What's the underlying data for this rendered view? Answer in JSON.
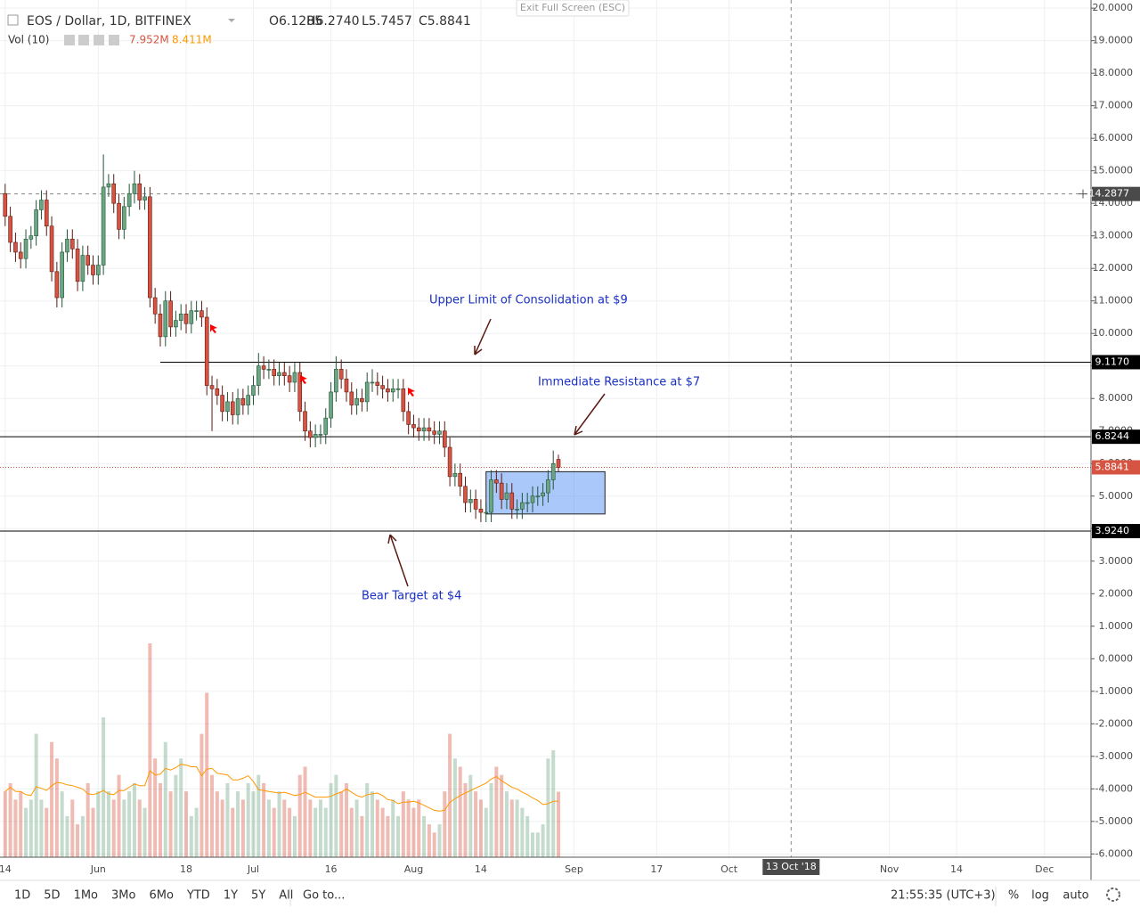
{
  "chart_data": {
    "type": "candlestick",
    "title": "EOS / Dollar, 1D, BITFINEX",
    "ohlc_labels": [
      "O6.1285",
      "H6.2740",
      "L5.7457",
      "C5.8841"
    ],
    "volume_title": "Vol (10)",
    "volume_labels": [
      "7.952M",
      "8.411M"
    ],
    "exit_button": "Exit Full Screen (ESC)",
    "x": [
      "2018-05-14",
      "2018-05-15",
      "2018-05-16",
      "2018-05-17",
      "2018-05-18",
      "2018-05-19",
      "2018-05-20",
      "2018-05-21",
      "2018-05-22",
      "2018-05-23",
      "2018-05-24",
      "2018-05-25",
      "2018-05-26",
      "2018-05-27",
      "2018-05-28",
      "2018-05-29",
      "2018-05-30",
      "2018-05-31",
      "2018-06-01",
      "2018-06-02",
      "2018-06-03",
      "2018-06-04",
      "2018-06-05",
      "2018-06-06",
      "2018-06-07",
      "2018-06-08",
      "2018-06-09",
      "2018-06-10",
      "2018-06-11",
      "2018-06-12",
      "2018-06-13",
      "2018-06-14",
      "2018-06-15",
      "2018-06-16",
      "2018-06-17",
      "2018-06-18",
      "2018-06-19",
      "2018-06-20",
      "2018-06-21",
      "2018-06-22",
      "2018-06-23",
      "2018-06-24",
      "2018-06-25",
      "2018-06-26",
      "2018-06-27",
      "2018-06-28",
      "2018-06-29",
      "2018-06-30",
      "2018-07-01",
      "2018-07-02",
      "2018-07-03",
      "2018-07-04",
      "2018-07-05",
      "2018-07-06",
      "2018-07-07",
      "2018-07-08",
      "2018-07-09",
      "2018-07-10",
      "2018-07-11",
      "2018-07-12",
      "2018-07-13",
      "2018-07-14",
      "2018-07-15",
      "2018-07-16",
      "2018-07-17",
      "2018-07-18",
      "2018-07-19",
      "2018-07-20",
      "2018-07-21",
      "2018-07-22",
      "2018-07-23",
      "2018-07-24",
      "2018-07-25",
      "2018-07-26",
      "2018-07-27",
      "2018-07-28",
      "2018-07-29",
      "2018-07-30",
      "2018-07-31",
      "2018-08-01",
      "2018-08-02",
      "2018-08-03",
      "2018-08-04",
      "2018-08-05",
      "2018-08-06",
      "2018-08-07",
      "2018-08-08",
      "2018-08-09",
      "2018-08-10",
      "2018-08-11",
      "2018-08-12",
      "2018-08-13",
      "2018-08-14",
      "2018-08-15",
      "2018-08-16",
      "2018-08-17",
      "2018-08-18",
      "2018-08-19",
      "2018-08-20",
      "2018-08-21",
      "2018-08-22",
      "2018-08-23",
      "2018-08-24",
      "2018-08-25",
      "2018-08-26",
      "2018-08-27",
      "2018-08-28",
      "2018-08-29"
    ],
    "open": [
      14.3,
      13.6,
      12.8,
      12.5,
      12.3,
      12.9,
      13.0,
      13.8,
      14.1,
      13.3,
      11.9,
      11.1,
      12.5,
      12.9,
      12.6,
      11.6,
      12.4,
      12.1,
      11.8,
      12.1,
      14.5,
      14.6,
      14.0,
      13.2,
      13.9,
      14.3,
      14.6,
      14.1,
      14.2,
      11.1,
      10.6,
      9.9,
      11.0,
      10.2,
      10.4,
      10.6,
      10.3,
      10.7,
      10.7,
      10.5,
      8.4,
      8.3,
      8.1,
      7.6,
      7.9,
      7.5,
      8.0,
      7.8,
      8.1,
      8.4,
      9.0,
      8.9,
      8.9,
      8.7,
      8.8,
      8.7,
      8.5,
      8.8,
      7.6,
      7.0,
      6.8,
      6.9,
      6.9,
      7.4,
      8.2,
      8.9,
      8.6,
      8.2,
      7.8,
      8.0,
      7.9,
      8.5,
      8.5,
      8.4,
      8.3,
      8.2,
      8.3,
      8.3,
      7.6,
      7.2,
      7.1,
      7.0,
      7.1,
      7.0,
      6.9,
      7.0,
      6.5,
      5.6,
      5.7,
      5.3,
      4.8,
      4.9,
      4.6,
      4.5,
      4.5,
      5.5,
      5.4,
      4.9,
      5.1,
      4.6,
      4.6,
      4.8,
      4.8,
      5.0,
      5.0,
      5.1,
      5.5,
      6.1285
    ],
    "high": [
      14.6,
      13.9,
      13.1,
      12.8,
      13.2,
      13.3,
      14.1,
      14.4,
      14.4,
      13.6,
      12.2,
      12.8,
      13.2,
      13.2,
      12.9,
      12.7,
      12.7,
      12.4,
      12.4,
      15.5,
      14.9,
      14.9,
      14.3,
      14.2,
      14.6,
      15.0,
      14.9,
      14.5,
      14.5,
      11.4,
      10.9,
      11.3,
      11.3,
      10.7,
      10.9,
      10.9,
      11.0,
      11.0,
      11.0,
      10.8,
      8.7,
      8.6,
      8.4,
      8.2,
      8.2,
      8.3,
      8.3,
      8.4,
      8.7,
      9.4,
      9.3,
      9.2,
      9.2,
      9.1,
      9.1,
      9.0,
      9.1,
      9.1,
      7.9,
      7.3,
      7.2,
      7.2,
      7.7,
      8.5,
      9.3,
      9.2,
      8.9,
      8.5,
      8.3,
      8.3,
      8.8,
      8.9,
      8.8,
      8.7,
      8.6,
      8.6,
      8.6,
      8.6,
      7.9,
      7.5,
      7.4,
      7.4,
      7.4,
      7.3,
      7.3,
      7.3,
      6.8,
      6.0,
      6.0,
      5.6,
      5.2,
      5.2,
      4.9,
      4.8,
      5.8,
      5.8,
      5.7,
      5.4,
      5.4,
      4.9,
      5.1,
      5.1,
      5.3,
      5.3,
      5.4,
      5.8,
      6.4,
      6.274
    ],
    "low": [
      13.3,
      12.5,
      12.2,
      12.0,
      12.0,
      12.6,
      12.7,
      13.5,
      13.0,
      11.6,
      10.8,
      10.8,
      12.2,
      12.3,
      11.3,
      11.3,
      11.8,
      11.5,
      11.5,
      11.8,
      14.2,
      13.7,
      12.9,
      12.9,
      13.6,
      14.0,
      13.8,
      13.8,
      10.8,
      10.3,
      9.6,
      9.6,
      9.9,
      9.9,
      10.1,
      10.0,
      10.0,
      10.4,
      10.2,
      8.1,
      7.0,
      7.8,
      7.3,
      7.3,
      7.2,
      7.2,
      7.5,
      7.5,
      7.8,
      8.1,
      8.6,
      8.6,
      8.4,
      8.4,
      8.4,
      8.2,
      8.2,
      7.3,
      6.7,
      6.5,
      6.5,
      6.6,
      6.6,
      7.1,
      7.9,
      8.3,
      7.9,
      7.5,
      7.5,
      7.6,
      7.6,
      8.2,
      8.1,
      8.0,
      7.9,
      7.9,
      8.0,
      7.3,
      6.9,
      6.8,
      6.7,
      6.7,
      6.7,
      6.6,
      6.6,
      6.2,
      5.3,
      5.3,
      5.0,
      4.5,
      4.5,
      4.3,
      4.2,
      4.2,
      4.2,
      5.1,
      4.6,
      4.6,
      4.3,
      4.3,
      4.3,
      4.5,
      4.5,
      4.7,
      4.7,
      4.8,
      5.2,
      5.7457
    ],
    "close": [
      13.6,
      12.8,
      12.5,
      12.3,
      12.9,
      13.0,
      13.8,
      14.1,
      13.3,
      11.9,
      11.1,
      12.5,
      12.9,
      12.6,
      11.6,
      12.4,
      12.1,
      11.8,
      12.1,
      14.5,
      14.6,
      14.0,
      13.2,
      13.9,
      14.3,
      14.6,
      14.1,
      14.2,
      11.1,
      10.6,
      9.9,
      11.0,
      10.2,
      10.4,
      10.6,
      10.3,
      10.7,
      10.7,
      10.5,
      8.4,
      8.3,
      8.1,
      7.6,
      7.9,
      7.5,
      8.0,
      7.8,
      8.1,
      8.4,
      9.0,
      8.9,
      8.9,
      8.7,
      8.8,
      8.7,
      8.5,
      8.8,
      7.6,
      7.0,
      6.8,
      6.9,
      6.9,
      7.4,
      8.2,
      8.9,
      8.6,
      8.2,
      7.8,
      8.0,
      7.9,
      8.5,
      8.5,
      8.4,
      8.3,
      8.2,
      8.3,
      8.3,
      7.6,
      7.2,
      7.1,
      7.0,
      7.1,
      7.0,
      6.9,
      7.0,
      6.5,
      5.6,
      5.7,
      5.3,
      4.8,
      4.9,
      4.6,
      4.5,
      4.5,
      5.5,
      5.4,
      4.9,
      5.1,
      4.6,
      4.6,
      4.8,
      4.8,
      5.0,
      5.0,
      5.1,
      5.5,
      6.0,
      5.8841
    ],
    "volume": [
      8,
      9,
      7,
      8,
      6,
      7,
      15,
      7,
      6,
      14,
      12,
      8,
      5,
      7,
      4,
      5,
      9,
      6,
      8,
      17,
      8,
      7,
      10,
      7,
      8,
      9,
      7,
      6,
      26,
      12,
      9,
      14,
      8,
      10,
      12,
      8,
      5,
      6,
      15,
      20,
      10,
      8,
      7,
      9,
      6,
      8,
      7,
      9,
      8,
      10,
      9,
      7,
      6,
      8,
      7,
      6,
      5,
      10,
      11,
      7,
      6,
      7,
      6,
      9,
      10,
      8,
      9,
      6,
      7,
      5,
      9,
      8,
      7,
      6,
      5,
      7,
      5,
      8,
      7,
      6,
      7,
      5,
      4,
      3,
      4,
      8,
      15,
      12,
      11,
      9,
      10,
      8,
      7,
      6,
      9,
      11,
      10,
      8,
      7,
      7,
      6,
      5,
      3,
      3,
      4,
      12,
      13,
      7.952
    ],
    "up_color": "#6ba583",
    "down_color": "#d75442",
    "volume_ma_color": "#ff9800",
    "xlim": [
      "2018-05-13",
      "2018-12-10"
    ],
    "xticks": [
      {
        "value": "2018-05-14",
        "label": "14"
      },
      {
        "value": "2018-06-01",
        "label": "Jun"
      },
      {
        "value": "2018-06-18",
        "label": "18"
      },
      {
        "value": "2018-07-01",
        "label": "Jul"
      },
      {
        "value": "2018-07-16",
        "label": "16"
      },
      {
        "value": "2018-08-01",
        "label": "Aug"
      },
      {
        "value": "2018-08-14",
        "label": "14"
      },
      {
        "value": "2018-09-01",
        "label": "Sep"
      },
      {
        "value": "2018-09-17",
        "label": "17"
      },
      {
        "value": "2018-10-01",
        "label": "Oct"
      },
      {
        "value": "2018-11-01",
        "label": "Nov"
      },
      {
        "value": "2018-11-14",
        "label": "14"
      },
      {
        "value": "2018-12-01",
        "label": "Dec"
      }
    ],
    "ylim": [
      -6.1,
      20.25
    ],
    "yticks": [
      {
        "value": 20,
        "label": "20.0000"
      },
      {
        "value": 19,
        "label": "19.0000"
      },
      {
        "value": 18,
        "label": "18.0000"
      },
      {
        "value": 17,
        "label": "17.0000"
      },
      {
        "value": 16,
        "label": "16.0000"
      },
      {
        "value": 15,
        "label": "15.0000"
      },
      {
        "value": 14,
        "label": "14.0000"
      },
      {
        "value": 13,
        "label": "13.0000"
      },
      {
        "value": 12,
        "label": "12.0000"
      },
      {
        "value": 11,
        "label": "11.0000"
      },
      {
        "value": 10,
        "label": "10.0000"
      },
      {
        "value": 9,
        "label": "9.0000"
      },
      {
        "value": 8,
        "label": "8.0000"
      },
      {
        "value": 7,
        "label": "7.0000"
      },
      {
        "value": 6,
        "label": "6.0000"
      },
      {
        "value": 5,
        "label": "5.0000"
      },
      {
        "value": 4,
        "label": "4.0000"
      },
      {
        "value": 3,
        "label": "3.0000"
      },
      {
        "value": 2,
        "label": "2.0000"
      },
      {
        "value": 1,
        "label": "1.0000"
      },
      {
        "value": 0,
        "label": "0.0000"
      },
      {
        "value": -1,
        "label": "-1.0000"
      },
      {
        "value": -2,
        "label": "-2.0000"
      },
      {
        "value": -3,
        "label": "-3.0000"
      },
      {
        "value": -4,
        "label": "-4.0000"
      },
      {
        "value": -5,
        "label": "-5.0000"
      },
      {
        "value": -6,
        "label": "-6.0000"
      }
    ],
    "grid": true,
    "levels": [
      {
        "value": 9.117,
        "label": "9.1170",
        "start": "2018-06-13"
      },
      {
        "value": 6.8244,
        "label": "6.8244"
      },
      {
        "value": 3.924,
        "label": "3.9240"
      }
    ],
    "last_price": {
      "value": 5.8841,
      "label": "5.8841"
    },
    "crosshair": {
      "x": "2018-10-13",
      "x_label": "13 Oct '18",
      "y": 14.2877,
      "y_label": "14.2877"
    },
    "box": {
      "x": [
        "2018-08-15",
        "2018-09-07"
      ],
      "y": [
        4.45,
        5.75
      ]
    },
    "annotations": [
      "Upper Limit of Consolidation at $9",
      "Immediate Resistance at $7",
      "Bear Target at $4"
    ],
    "toolbar": {
      "periods": [
        "1D",
        "5D",
        "1Mo",
        "3Mo",
        "6Mo",
        "YTD",
        "1Y",
        "5Y",
        "All"
      ],
      "goto": "Go to...",
      "time": "21:55:35 (UTC+3)",
      "options": [
        "%",
        "log",
        "auto"
      ]
    }
  }
}
